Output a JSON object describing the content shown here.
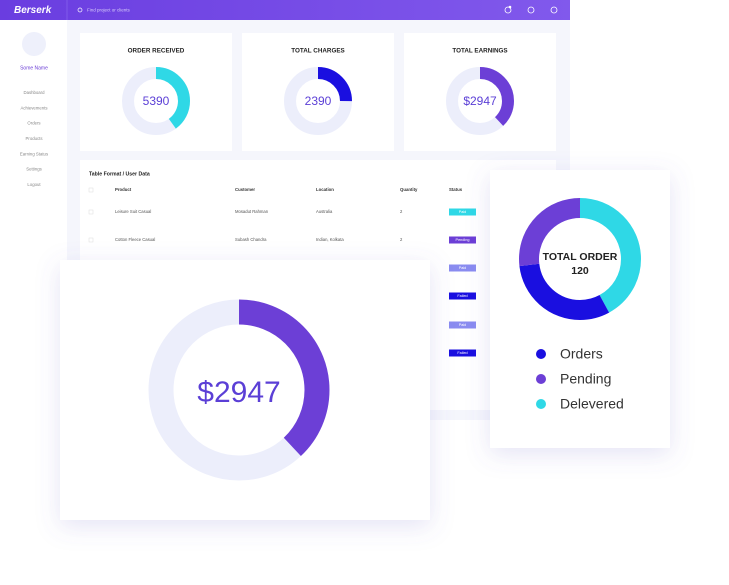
{
  "header": {
    "brand": "Berserk",
    "search_placeholder": "Find project or clients"
  },
  "sidebar": {
    "user": "Some Name",
    "menu": [
      "Dashboard",
      "Achievements",
      "Orders",
      "Products",
      "Earning Status",
      "Settings",
      "Logout"
    ]
  },
  "stat_cards": [
    {
      "title": "ORDER RECEIVED",
      "value": "5390",
      "percent": 40,
      "color": "#2fd8e6"
    },
    {
      "title": "TOTAL CHARGES",
      "value": "2390",
      "percent": 25,
      "color": "#1a0fe0"
    },
    {
      "title": "TOTAL EARNINGS",
      "value": "$2947",
      "percent": 38,
      "color": "#6c3fd6"
    }
  ],
  "table": {
    "title": "Table Format / User Data",
    "headers": [
      "Product",
      "Customer",
      "Location",
      "Quantity",
      "Status"
    ],
    "rows": [
      [
        "Leisure Suit Casual",
        "Mosadut Rahman",
        "Australia",
        "2",
        "Paid"
      ],
      [
        "Cotton Fleece Casual",
        "Subash Chandra",
        "Indian, Kolkata",
        "2",
        "Pending"
      ]
    ],
    "more_statuses": [
      "Paid",
      "Failed",
      "Paid",
      "Failed"
    ]
  },
  "featured": {
    "value": "$2947",
    "percent": 38,
    "color": "#6c3fd6"
  },
  "total_order": {
    "title": "TOTAL ORDER",
    "value": "120",
    "segments": [
      {
        "name": "Delevered",
        "percent": 42,
        "color": "#2fd8e6"
      },
      {
        "name": "Orders",
        "percent": 31,
        "color": "#1a0fe0"
      },
      {
        "name": "Pending",
        "percent": 27,
        "color": "#6c3fd6"
      }
    ]
  }
}
